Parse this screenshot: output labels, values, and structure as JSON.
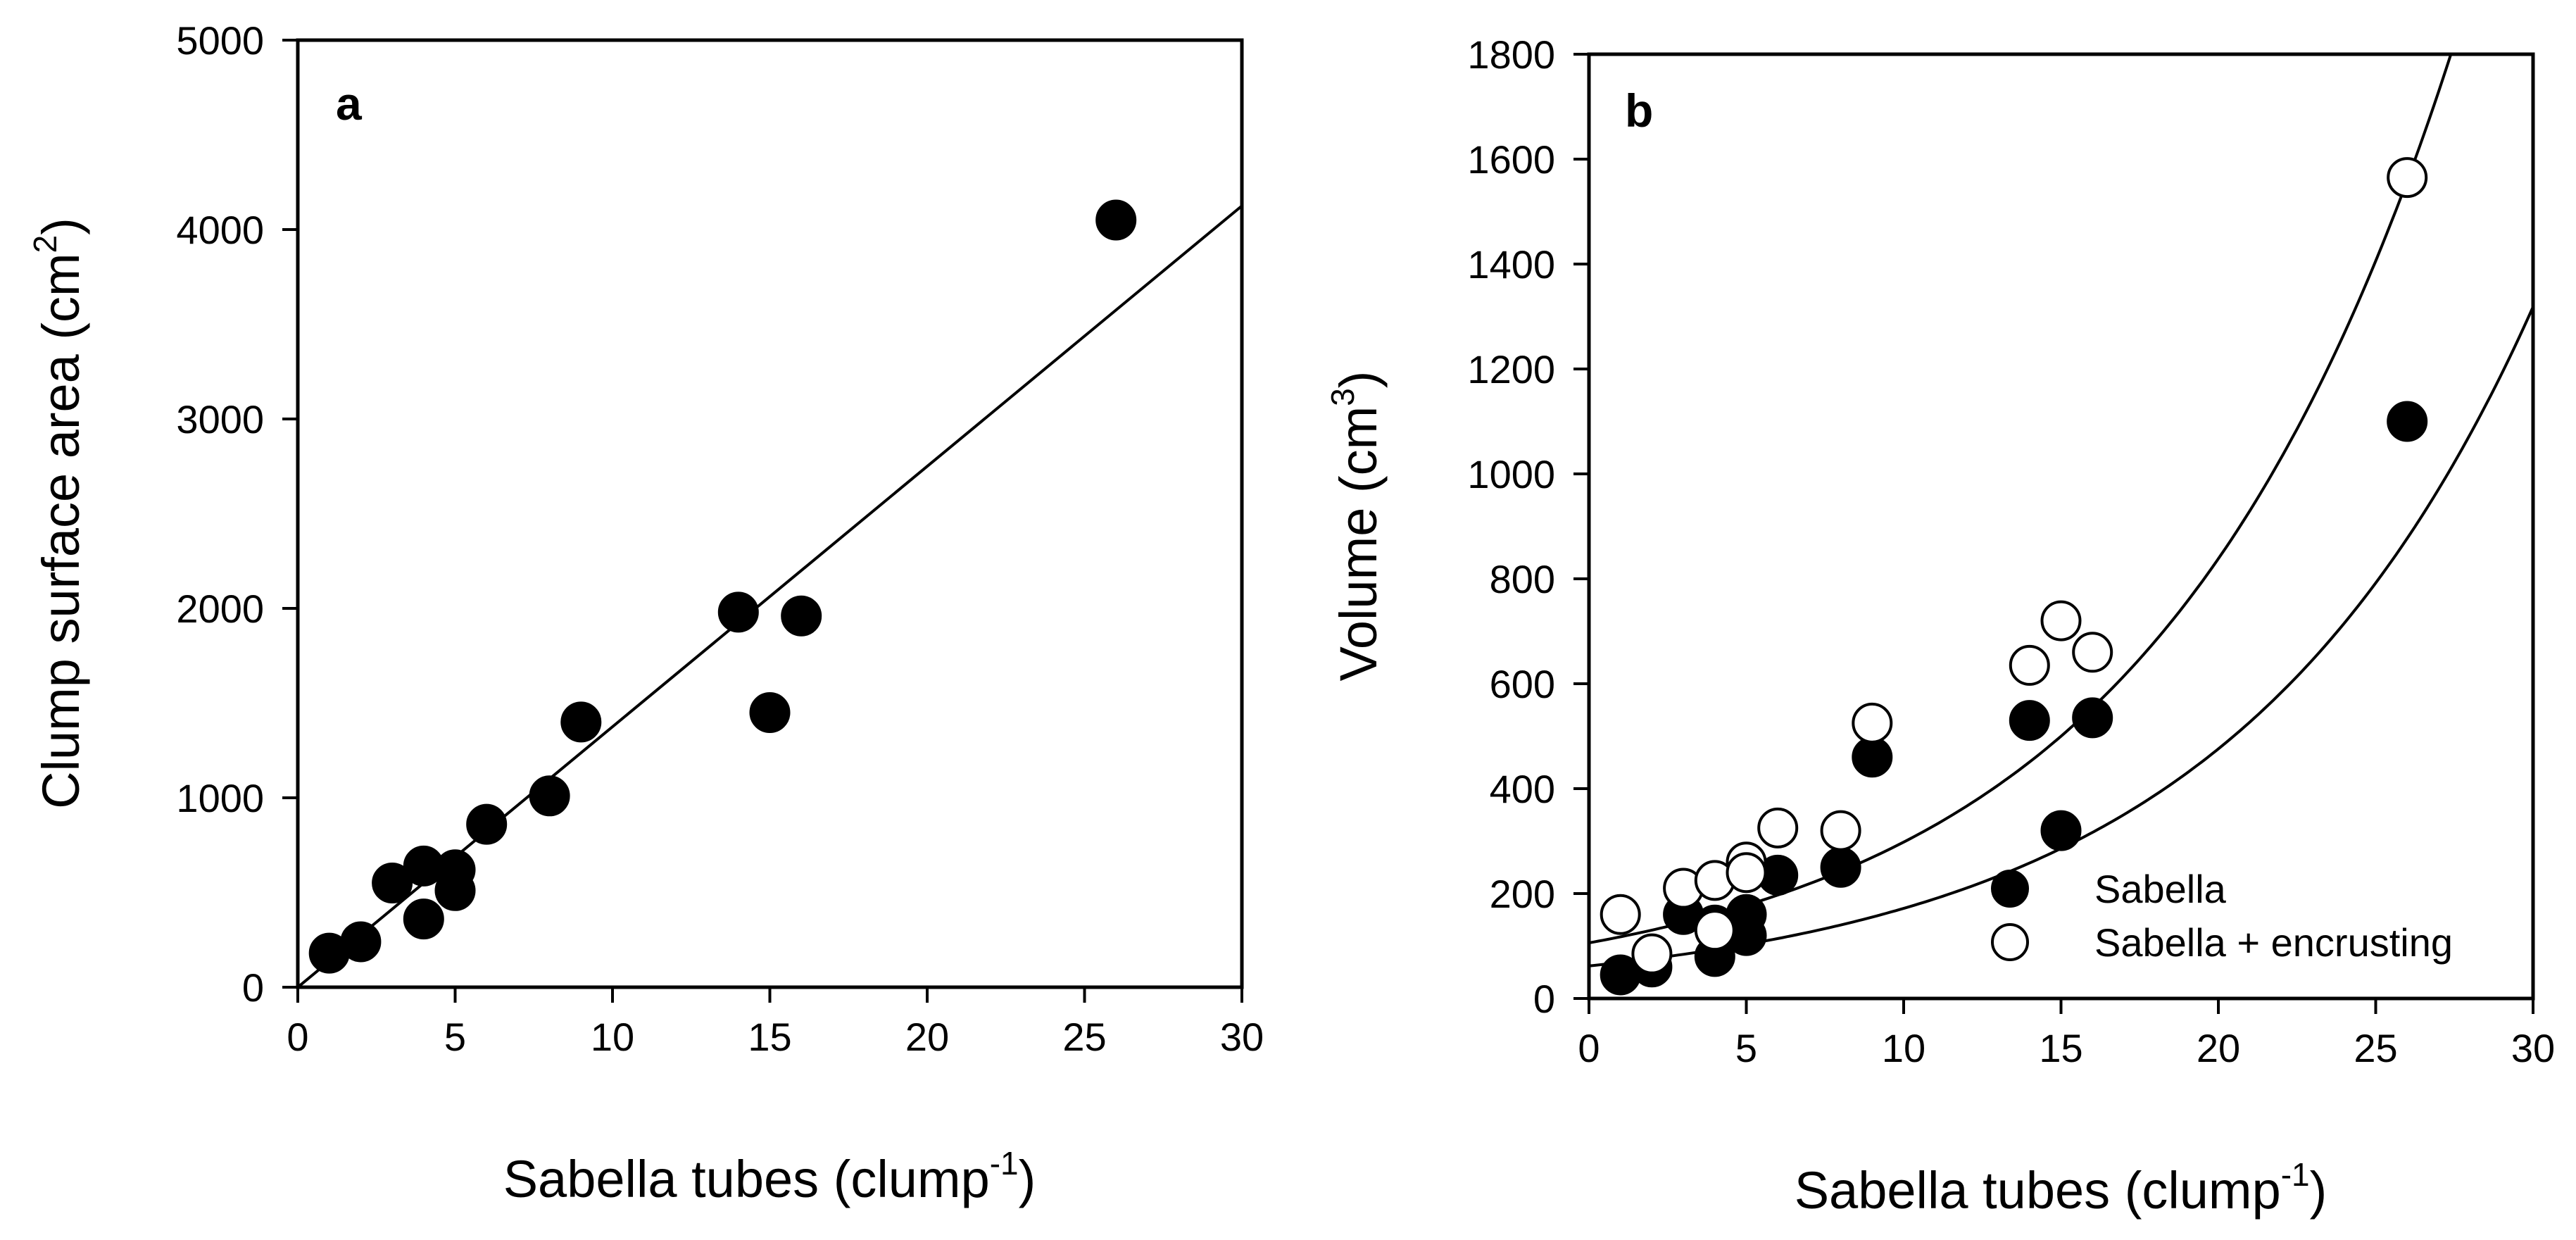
{
  "chart_data": [
    {
      "type": "scatter",
      "panel_label": "a",
      "xlabel": "Sabella tubes (clump",
      "xlabel_sup": "-1",
      "xlabel_tail": ")",
      "ylabel": "Clump surface area (cm",
      "ylabel_sup": "2",
      "ylabel_tail": ")",
      "xlim": [
        0,
        30
      ],
      "ylim": [
        0,
        5000
      ],
      "x_ticks": [
        0,
        5,
        10,
        15,
        20,
        25,
        30
      ],
      "y_ticks": [
        0,
        1000,
        2000,
        3000,
        4000,
        5000
      ],
      "x_tick_labels": [
        "0",
        "5",
        "10",
        "15",
        "20",
        "25",
        "30"
      ],
      "y_tick_labels": [
        "0",
        "1000",
        "2000",
        "3000",
        "4000",
        "5000"
      ],
      "series": [
        {
          "name": "Sabella",
          "marker": "filled-circle",
          "x": [
            1,
            2,
            3,
            4,
            4,
            5,
            5,
            6,
            8,
            9,
            14,
            15,
            16,
            26
          ],
          "y": [
            180,
            240,
            550,
            640,
            360,
            620,
            510,
            860,
            1010,
            1400,
            1980,
            1450,
            1960,
            4050
          ]
        }
      ],
      "fit": {
        "type": "linear",
        "intercept": 0,
        "slope": 137.5
      }
    },
    {
      "type": "scatter",
      "panel_label": "b",
      "xlabel": "Sabella tubes (clump",
      "xlabel_sup": "-1",
      "xlabel_tail": ")",
      "ylabel": "Volume (cm",
      "ylabel_sup": "3",
      "ylabel_tail": ")",
      "xlim": [
        0,
        30
      ],
      "ylim": [
        0,
        1800
      ],
      "x_ticks": [
        0,
        5,
        10,
        15,
        20,
        25,
        30
      ],
      "y_ticks": [
        0,
        200,
        400,
        600,
        800,
        1000,
        1200,
        1400,
        1600,
        1800
      ],
      "x_tick_labels": [
        "0",
        "5",
        "10",
        "15",
        "20",
        "25",
        "30"
      ],
      "y_tick_labels": [
        "0",
        "200",
        "400",
        "600",
        "800",
        "1000",
        "1200",
        "1400",
        "1600",
        "1800"
      ],
      "legend_position": "bottom-right",
      "series": [
        {
          "name": "Sabella",
          "marker": "filled-circle",
          "x": [
            1,
            2,
            3,
            4,
            4,
            5,
            5,
            6,
            8,
            9,
            14,
            15,
            16,
            26
          ],
          "y": [
            45,
            60,
            160,
            80,
            140,
            160,
            120,
            235,
            250,
            460,
            530,
            320,
            535,
            1100
          ]
        },
        {
          "name": "Sabella + encrusting",
          "marker": "open-circle",
          "x": [
            1,
            2,
            3,
            4,
            4,
            5,
            5,
            6,
            8,
            9,
            14,
            15,
            16,
            26
          ],
          "y": [
            160,
            85,
            210,
            225,
            130,
            260,
            240,
            325,
            320,
            525,
            635,
            720,
            660,
            1565
          ]
        }
      ],
      "fits": [
        {
          "series": "Sabella",
          "type": "exponential",
          "a": 62,
          "b": 0.1019
        },
        {
          "series": "Sabella + encrusting",
          "type": "exponential",
          "a": 106,
          "b": 0.1034
        }
      ]
    }
  ]
}
